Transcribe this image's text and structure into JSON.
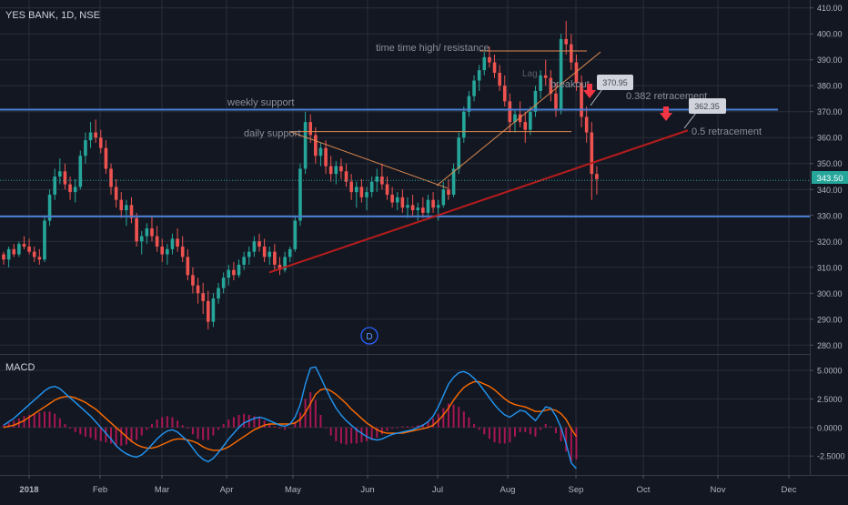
{
  "chart_data": [
    {
      "type": "candlestick",
      "title": "YES BANK, 1D, NSE",
      "ylim": [
        278,
        412
      ],
      "y_ticks": [
        "410.00",
        "400.00",
        "390.00",
        "380.00",
        "370.00",
        "360.00",
        "350.00",
        "340.00",
        "330.00",
        "320.00",
        "310.00",
        "300.00",
        "290.00",
        "280.00"
      ],
      "x_ticks": [
        "2018",
        "Feb",
        "Mar",
        "Apr",
        "May",
        "Jun",
        "Jul",
        "Aug",
        "Sep",
        "Oct",
        "Nov",
        "Dec"
      ],
      "last_price": "343.50",
      "series": [
        {
          "name": "price",
          "values": [
            [
              315,
              316,
              311,
              313
            ],
            [
              313,
              318,
              310,
              317
            ],
            [
              317,
              319,
              314,
              315
            ],
            [
              315,
              320,
              314,
              319
            ],
            [
              319,
              322,
              317,
              318
            ],
            [
              318,
              321,
              315,
              316
            ],
            [
              316,
              318,
              312,
              314
            ],
            [
              314,
              317,
              311,
              313
            ],
            [
              313,
              330,
              312,
              328
            ],
            [
              328,
              340,
              326,
              338
            ],
            [
              338,
              348,
              336,
              345
            ],
            [
              345,
              352,
              342,
              347
            ],
            [
              347,
              350,
              340,
              342
            ],
            [
              342,
              345,
              336,
              339
            ],
            [
              339,
              344,
              335,
              341
            ],
            [
              341,
              355,
              340,
              353
            ],
            [
              353,
              362,
              350,
              359
            ],
            [
              359,
              366,
              356,
              362
            ],
            [
              362,
              367,
              358,
              360
            ],
            [
              360,
              363,
              354,
              356
            ],
            [
              356,
              359,
              346,
              348
            ],
            [
              348,
              350,
              338,
              341
            ],
            [
              341,
              344,
              333,
              336
            ],
            [
              336,
              339,
              329,
              332
            ],
            [
              332,
              336,
              326,
              334
            ],
            [
              334,
              337,
              327,
              329
            ],
            [
              329,
              331,
              318,
              320
            ],
            [
              320,
              324,
              315,
              322
            ],
            [
              322,
              327,
              319,
              325
            ],
            [
              325,
              330,
              320,
              322
            ],
            [
              322,
              326,
              316,
              318
            ],
            [
              318,
              321,
              312,
              315
            ],
            [
              315,
              319,
              311,
              317
            ],
            [
              317,
              323,
              315,
              321
            ],
            [
              321,
              325,
              316,
              318
            ],
            [
              318,
              322,
              312,
              314
            ],
            [
              314,
              317,
              305,
              307
            ],
            [
              307,
              310,
              300,
              303
            ],
            [
              303,
              306,
              296,
              300
            ],
            [
              300,
              304,
              292,
              297
            ],
            [
              297,
              301,
              286,
              289
            ],
            [
              289,
              300,
              287,
              298
            ],
            [
              298,
              304,
              296,
              302
            ],
            [
              302,
              308,
              300,
              306
            ],
            [
              306,
              311,
              303,
              309
            ],
            [
              309,
              312,
              305,
              307
            ],
            [
              307,
              313,
              306,
              311
            ],
            [
              311,
              316,
              309,
              314
            ],
            [
              314,
              318,
              311,
              316
            ],
            [
              316,
              322,
              314,
              320
            ],
            [
              320,
              323,
              316,
              318
            ],
            [
              318,
              321,
              312,
              314
            ],
            [
              314,
              318,
              311,
              316
            ],
            [
              316,
              319,
              309,
              311
            ],
            [
              311,
              314,
              307,
              309
            ],
            [
              309,
              316,
              308,
              314
            ],
            [
              314,
              318,
              312,
              317
            ],
            [
              317,
              330,
              316,
              328
            ],
            [
              328,
              350,
              326,
              348
            ],
            [
              348,
              370,
              346,
              366
            ],
            [
              366,
              369,
              358,
              361
            ],
            [
              361,
              364,
              350,
              353
            ],
            [
              353,
              358,
              349,
              356
            ],
            [
              356,
              359,
              346,
              349
            ],
            [
              349,
              353,
              343,
              346
            ],
            [
              346,
              351,
              342,
              349
            ],
            [
              349,
              352,
              344,
              347
            ],
            [
              347,
              350,
              341,
              343
            ],
            [
              343,
              346,
              336,
              339
            ],
            [
              339,
              343,
              333,
              341
            ],
            [
              341,
              344,
              335,
              337
            ],
            [
              337,
              341,
              332,
              339
            ],
            [
              339,
              345,
              337,
              343
            ],
            [
              343,
              348,
              339,
              345
            ],
            [
              345,
              350,
              340,
              342
            ],
            [
              342,
              345,
              336,
              338
            ],
            [
              338,
              341,
              333,
              335
            ],
            [
              335,
              339,
              332,
              337
            ],
            [
              337,
              340,
              331,
              333
            ],
            [
              333,
              337,
              329,
              334
            ],
            [
              334,
              338,
              330,
              332
            ],
            [
              332,
              335,
              328,
              333
            ],
            [
              333,
              337,
              329,
              331
            ],
            [
              331,
              338,
              330,
              336
            ],
            [
              336,
              339,
              331,
              333
            ],
            [
              333,
              336,
              328,
              334
            ],
            [
              334,
              343,
              333,
              340
            ],
            [
              340,
              344,
              336,
              338
            ],
            [
              338,
              350,
              337,
              348
            ],
            [
              348,
              362,
              346,
              360
            ],
            [
              360,
              372,
              358,
              370
            ],
            [
              370,
              378,
              368,
              376
            ],
            [
              376,
              384,
              374,
              382
            ],
            [
              382,
              388,
              378,
              386
            ],
            [
              386,
              393,
              384,
              391
            ],
            [
              391,
              395,
              387,
              389
            ],
            [
              389,
              392,
              383,
              385
            ],
            [
              385,
              388,
              378,
              380
            ],
            [
              380,
              384,
              372,
              374
            ],
            [
              374,
              377,
              362,
              366
            ],
            [
              366,
              371,
              362,
              369
            ],
            [
              369,
              374,
              364,
              366
            ],
            [
              366,
              370,
              358,
              363
            ],
            [
              363,
              372,
              361,
              370
            ],
            [
              370,
              380,
              368,
              378
            ],
            [
              378,
              386,
              375,
              384
            ],
            [
              384,
              390,
              380,
              383
            ],
            [
              383,
              386,
              374,
              377
            ],
            [
              377,
              381,
              368,
              371
            ],
            [
              371,
              400,
              369,
              398
            ],
            [
              398,
              405,
              392,
              396
            ],
            [
              396,
              400,
              386,
              389
            ],
            [
              389,
              392,
              378,
              381
            ],
            [
              381,
              384,
              364,
              368
            ],
            [
              368,
              372,
              358,
              362
            ],
            [
              362,
              366,
              336,
              346
            ],
            [
              346,
              349,
              338,
              344
            ]
          ]
        },
        {
          "name": "MACD",
          "values": [
            0.2,
            0.5,
            0.8,
            1.2,
            1.6,
            2.0,
            2.4,
            2.8,
            3.2,
            3.5,
            3.6,
            3.4,
            3.0,
            2.6,
            2.2,
            1.8,
            1.4,
            1.0,
            0.5,
            0.0,
            -0.5,
            -1.0,
            -1.6,
            -2.0,
            -2.3,
            -2.5,
            -2.6,
            -2.4,
            -2.0,
            -1.5,
            -1.0,
            -0.6,
            -0.3,
            -0.2,
            -0.4,
            -0.8,
            -1.2,
            -1.8,
            -2.4,
            -2.8,
            -3.0,
            -2.7,
            -2.2,
            -1.6,
            -1.0,
            -0.5,
            0.0,
            0.4,
            0.6,
            0.8,
            0.9,
            0.8,
            0.6,
            0.4,
            0.2,
            0.1,
            0.3,
            0.9,
            2.0,
            3.8,
            5.2,
            5.3,
            4.4,
            3.4,
            2.5,
            1.7,
            1.1,
            0.6,
            0.2,
            -0.2,
            -0.5,
            -0.8,
            -1.0,
            -1.1,
            -1.0,
            -0.8,
            -0.6,
            -0.5,
            -0.4,
            -0.3,
            -0.2,
            0.0,
            0.2,
            0.5,
            1.0,
            1.8,
            2.8,
            3.8,
            4.4,
            4.8,
            4.9,
            4.7,
            4.3,
            3.8,
            3.2,
            2.6,
            2.0,
            1.5,
            1.1,
            0.9,
            1.2,
            1.5,
            1.4,
            1.0,
            0.6,
            1.2,
            1.8,
            1.7,
            1.0,
            0.0,
            -1.4,
            -3.1,
            -3.6
          ]
        },
        {
          "name": "Signal",
          "values": [
            0.0,
            0.1,
            0.2,
            0.4,
            0.6,
            0.9,
            1.2,
            1.5,
            1.8,
            2.1,
            2.4,
            2.6,
            2.7,
            2.7,
            2.6,
            2.4,
            2.2,
            1.9,
            1.6,
            1.2,
            0.8,
            0.4,
            0.0,
            -0.4,
            -0.8,
            -1.2,
            -1.5,
            -1.7,
            -1.8,
            -1.8,
            -1.7,
            -1.5,
            -1.3,
            -1.1,
            -1.0,
            -1.0,
            -1.1,
            -1.2,
            -1.4,
            -1.7,
            -1.9,
            -2.0,
            -2.0,
            -1.9,
            -1.7,
            -1.4,
            -1.1,
            -0.8,
            -0.5,
            -0.2,
            0.0,
            0.2,
            0.3,
            0.3,
            0.3,
            0.3,
            0.3,
            0.4,
            0.7,
            1.3,
            2.1,
            2.9,
            3.3,
            3.4,
            3.2,
            2.9,
            2.5,
            2.1,
            1.6,
            1.2,
            0.8,
            0.4,
            0.1,
            -0.2,
            -0.4,
            -0.5,
            -0.5,
            -0.5,
            -0.5,
            -0.4,
            -0.3,
            -0.2,
            -0.1,
            0.0,
            0.2,
            0.6,
            1.1,
            1.7,
            2.4,
            3.0,
            3.5,
            3.8,
            4.0,
            4.0,
            3.8,
            3.6,
            3.3,
            2.9,
            2.5,
            2.2,
            2.0,
            1.9,
            1.8,
            1.6,
            1.4,
            1.4,
            1.5,
            1.6,
            1.5,
            1.2,
            0.7,
            -0.1,
            -0.8
          ]
        }
      ]
    },
    {
      "type": "bar",
      "title": "MACD",
      "ylim": [
        -4.0,
        6.2
      ],
      "y_ticks": [
        "5.0000",
        "2.5000",
        "0.0000",
        "-2.5000"
      ]
    }
  ],
  "annotations": {
    "resistance": "time time high/ resistance",
    "weekly": "weekly support",
    "daily": "daily support",
    "breakout": "breakout",
    "retrace382": "0.382 retracement",
    "retrace05": "0.5 retracement",
    "callout1": "370.95",
    "callout2": "362.35",
    "faded": "Lag",
    "badge": "D"
  },
  "colors": {
    "background": "#131722",
    "up": "#26a69a",
    "down": "#ef5350",
    "support_line": "#4a7fd4",
    "trend_line": "#b71c1c",
    "orange_line": "#e08a4f",
    "macd": "#2196f3",
    "signal": "#ff6d00",
    "hist_up": "#c2185b",
    "hist_down": "#c2185b",
    "grid": "#2a2e39",
    "text": "#b2b5be",
    "price_tag": "#26a69a"
  }
}
